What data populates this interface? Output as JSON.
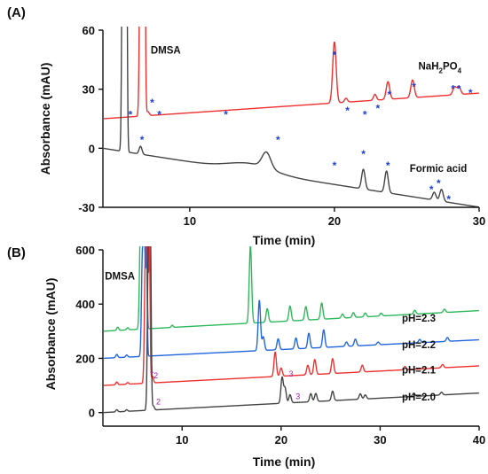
{
  "chart_data": [
    {
      "panel_label": "(A)",
      "type": "line",
      "xlabel": "Time (min)",
      "ylabel": "Absorbance (mAU)",
      "xlim": [
        4,
        30
      ],
      "ylim": [
        -30,
        60
      ],
      "xticks": [
        10,
        20,
        30
      ],
      "yticks": [
        -30,
        0,
        30,
        60
      ],
      "grid": false,
      "annotations": [
        {
          "text": "DMSA",
          "x": 7.3,
          "y": 48
        },
        {
          "text": "Formic acid",
          "x": 25.2,
          "y": -12
        }
      ],
      "subscript_annotation": {
        "parts": [
          "NaH",
          "2",
          "PO",
          "4"
        ],
        "x": 25.8,
        "y": 40
      },
      "peak_marker": "*",
      "series": [
        {
          "color": "#ee3030",
          "baseline": 15,
          "offset": 0,
          "slope": 0.5,
          "peaks": [
            {
              "t": 6.65,
              "h": 220,
              "w": 0.08
            },
            {
              "t": 6.85,
              "h": 200,
              "w": 0.06
            },
            {
              "t": 7.1,
              "h": 2,
              "w": 0.1
            },
            {
              "t": 20.0,
              "h": 31,
              "w": 0.12
            },
            {
              "t": 20.8,
              "h": 2,
              "w": 0.1
            },
            {
              "t": 22.8,
              "h": 3,
              "w": 0.1
            },
            {
              "t": 23.7,
              "h": 9,
              "w": 0.12
            },
            {
              "t": 25.4,
              "h": 9,
              "w": 0.12
            },
            {
              "t": 28.3,
              "h": 4,
              "w": 0.12
            },
            {
              "t": 28.6,
              "h": 4,
              "w": 0.12
            }
          ],
          "markers": [
            {
              "x": 5.9,
              "y": 18
            },
            {
              "x": 7.4,
              "y": 24
            },
            {
              "x": 7.9,
              "y": 18
            },
            {
              "x": 12.5,
              "y": 18
            },
            {
              "x": 20.0,
              "y": 48
            },
            {
              "x": 20.9,
              "y": 20
            },
            {
              "x": 22.1,
              "y": 18
            },
            {
              "x": 23.0,
              "y": 21
            },
            {
              "x": 23.8,
              "y": 28
            },
            {
              "x": 25.5,
              "y": 32
            },
            {
              "x": 28.2,
              "y": 31
            },
            {
              "x": 28.6,
              "y": 31
            },
            {
              "x": 29.4,
              "y": 29
            }
          ]
        },
        {
          "color": "#444444",
          "baseline": 0,
          "offset": 0,
          "slope": -1.15,
          "peaks": [
            {
              "t": 5.4,
              "h": 220,
              "w": 0.07
            },
            {
              "t": 5.6,
              "h": 200,
              "w": 0.06
            },
            {
              "t": 6.6,
              "h": 4,
              "w": 0.1
            },
            {
              "t": 14.2,
              "h": 4,
              "w": 1.5
            },
            {
              "t": 15.3,
              "h": 8,
              "w": 0.3
            },
            {
              "t": 22.0,
              "h": 10,
              "w": 0.12
            },
            {
              "t": 23.6,
              "h": 11,
              "w": 0.12
            },
            {
              "t": 26.9,
              "h": 4,
              "w": 0.12
            },
            {
              "t": 27.4,
              "h": 6,
              "w": 0.12
            }
          ],
          "markers": [
            {
              "x": 6.7,
              "y": 5
            },
            {
              "x": 16.1,
              "y": 5
            },
            {
              "x": 20.0,
              "y": -8
            },
            {
              "x": 22.0,
              "y": -2
            },
            {
              "x": 23.7,
              "y": -8
            },
            {
              "x": 26.7,
              "y": -20
            },
            {
              "x": 27.2,
              "y": -17
            },
            {
              "x": 27.9,
              "y": -25
            }
          ]
        }
      ]
    },
    {
      "panel_label": "(B)",
      "type": "line",
      "xlabel": "Time (min)",
      "ylabel": "Absorbance (mAU)",
      "xlim": [
        2,
        40
      ],
      "ylim": [
        -50,
        600
      ],
      "xticks": [
        10,
        20,
        30,
        40
      ],
      "yticks": [
        0,
        200,
        400,
        600
      ],
      "grid": false,
      "annotations": [
        {
          "text": "DMSA",
          "x": 2.2,
          "y": 490
        }
      ],
      "series": [
        {
          "name": "pH=2.3",
          "label_x": 32.2,
          "label_y": 335,
          "color": "#2eb85c",
          "baseline": 300,
          "slope": 2.0,
          "peaks": [
            {
              "t": 3.5,
              "h": 12,
              "w": 0.1
            },
            {
              "t": 4.5,
              "h": 8,
              "w": 0.1
            },
            {
              "t": 5.8,
              "h": 400,
              "w": 0.1
            },
            {
              "t": 6.0,
              "h": 400,
              "w": 0.08
            },
            {
              "t": 6.2,
              "h": 400,
              "w": 0.07
            },
            {
              "t": 6.4,
              "h": 400,
              "w": 0.07
            },
            {
              "t": 9.0,
              "h": 8,
              "w": 0.1
            },
            {
              "t": 16.9,
              "h": 285,
              "w": 0.12
            },
            {
              "t": 18.6,
              "h": 50,
              "w": 0.12
            },
            {
              "t": 20.9,
              "h": 55,
              "w": 0.12
            },
            {
              "t": 22.5,
              "h": 50,
              "w": 0.12
            },
            {
              "t": 24.1,
              "h": 60,
              "w": 0.12
            },
            {
              "t": 26.2,
              "h": 15,
              "w": 0.12
            },
            {
              "t": 27.3,
              "h": 18,
              "w": 0.12
            },
            {
              "t": 28.5,
              "h": 14,
              "w": 0.12
            },
            {
              "t": 30.1,
              "h": 10,
              "w": 0.12
            },
            {
              "t": 33.5,
              "h": 14,
              "w": 0.12
            },
            {
              "t": 36.5,
              "h": 12,
              "w": 0.12
            }
          ]
        },
        {
          "name": "pH=2.2",
          "label_x": 32.2,
          "label_y": 238,
          "color": "#2266dd",
          "baseline": 200,
          "slope": 1.8,
          "peaks": [
            {
              "t": 3.4,
              "h": 12,
              "w": 0.1
            },
            {
              "t": 4.4,
              "h": 8,
              "w": 0.1
            },
            {
              "t": 6.0,
              "h": 390,
              "w": 0.1
            },
            {
              "t": 6.2,
              "h": 390,
              "w": 0.08
            },
            {
              "t": 6.4,
              "h": 390,
              "w": 0.07
            },
            {
              "t": 17.8,
              "h": 185,
              "w": 0.12
            },
            {
              "t": 18.2,
              "h": 50,
              "w": 0.12
            },
            {
              "t": 19.7,
              "h": 40,
              "w": 0.12
            },
            {
              "t": 21.5,
              "h": 40,
              "w": 0.12
            },
            {
              "t": 22.8,
              "h": 55,
              "w": 0.12
            },
            {
              "t": 24.3,
              "h": 65,
              "w": 0.12
            },
            {
              "t": 26.6,
              "h": 16,
              "w": 0.12
            },
            {
              "t": 27.5,
              "h": 25,
              "w": 0.12
            },
            {
              "t": 29.8,
              "h": 10,
              "w": 0.12
            },
            {
              "t": 34.0,
              "h": 12,
              "w": 0.12
            },
            {
              "t": 36.8,
              "h": 14,
              "w": 0.12
            }
          ]
        },
        {
          "name": "pH=2.1",
          "label_x": 32.2,
          "label_y": 145,
          "color": "#ee3030",
          "baseline": 100,
          "slope": 1.9,
          "peaks": [
            {
              "t": 3.4,
              "h": 10,
              "w": 0.1
            },
            {
              "t": 4.5,
              "h": 6,
              "w": 0.1
            },
            {
              "t": 6.3,
              "h": 490,
              "w": 0.1
            },
            {
              "t": 6.5,
              "h": 490,
              "w": 0.08
            },
            {
              "t": 6.7,
              "h": 490,
              "w": 0.07
            },
            {
              "t": 7.0,
              "h": 25,
              "w": 0.1
            },
            {
              "t": 19.4,
              "h": 90,
              "w": 0.12
            },
            {
              "t": 20.0,
              "h": 30,
              "w": 0.12
            },
            {
              "t": 22.7,
              "h": 35,
              "w": 0.12
            },
            {
              "t": 23.4,
              "h": 55,
              "w": 0.12
            },
            {
              "t": 25.2,
              "h": 55,
              "w": 0.12
            },
            {
              "t": 28.2,
              "h": 25,
              "w": 0.12
            },
            {
              "t": 32.5,
              "h": 12,
              "w": 0.12
            },
            {
              "t": 36.3,
              "h": 12,
              "w": 0.12
            }
          ],
          "numbers": [
            {
              "text": "1",
              "x": 6.95,
              "y": 148
            },
            {
              "text": "2",
              "x": 7.35,
              "y": 126
            },
            {
              "text": "3",
              "x": 21.0,
              "y": 133
            }
          ]
        },
        {
          "name": "pH=2.0",
          "label_x": 32.2,
          "label_y": 45,
          "color": "#444444",
          "baseline": 0,
          "slope": 1.9,
          "peaks": [
            {
              "t": 3.4,
              "h": 8,
              "w": 0.1
            },
            {
              "t": 4.4,
              "h": 6,
              "w": 0.1
            },
            {
              "t": 6.6,
              "h": 600,
              "w": 0.1
            },
            {
              "t": 6.8,
              "h": 600,
              "w": 0.08
            },
            {
              "t": 7.1,
              "h": 15,
              "w": 0.1
            },
            {
              "t": 20.1,
              "h": 95,
              "w": 0.12
            },
            {
              "t": 20.4,
              "h": 55,
              "w": 0.12
            },
            {
              "t": 20.9,
              "h": 30,
              "w": 0.12
            },
            {
              "t": 23.0,
              "h": 30,
              "w": 0.12
            },
            {
              "t": 23.5,
              "h": 30,
              "w": 0.12
            },
            {
              "t": 25.2,
              "h": 35,
              "w": 0.12
            },
            {
              "t": 28.0,
              "h": 20,
              "w": 0.12
            },
            {
              "t": 28.5,
              "h": 15,
              "w": 0.12
            },
            {
              "t": 33.4,
              "h": 12,
              "w": 0.12
            },
            {
              "t": 36.2,
              "h": 10,
              "w": 0.12
            }
          ],
          "numbers": [
            {
              "text": "2",
              "x": 7.6,
              "y": 30
            },
            {
              "text": "3",
              "x": 21.7,
              "y": 50
            }
          ]
        }
      ]
    }
  ]
}
